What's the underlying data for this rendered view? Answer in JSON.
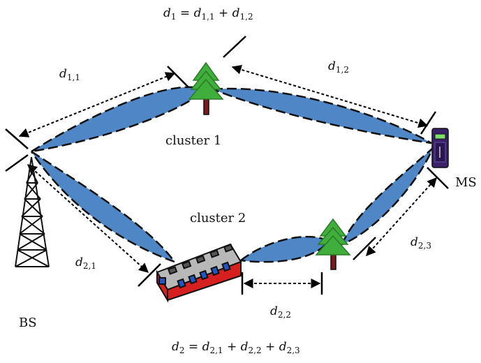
{
  "equations": {
    "top": {
      "lhs": "d",
      "lhs_sub": "1",
      "rhs": [
        {
          "v": "d",
          "s": "1,1"
        },
        {
          "v": "d",
          "s": "1,2"
        }
      ]
    },
    "bottom": {
      "lhs": "d",
      "lhs_sub": "2",
      "rhs": [
        {
          "v": "d",
          "s": "2,1"
        },
        {
          "v": "d",
          "s": "2,2"
        },
        {
          "v": "d",
          "s": "2,3"
        }
      ]
    }
  },
  "labels": {
    "cluster1": "cluster 1",
    "cluster2": "cluster 2",
    "bs": "BS",
    "ms": "MS"
  },
  "distances": {
    "d11": {
      "v": "d",
      "s": "1,1"
    },
    "d12": {
      "v": "d",
      "s": "1,2"
    },
    "d21": {
      "v": "d",
      "s": "2,1"
    },
    "d22": {
      "v": "d",
      "s": "2,2"
    },
    "d23": {
      "v": "d",
      "s": "2,3"
    }
  },
  "colors": {
    "beam": "#4f86c6",
    "tree": "#3fae3a",
    "trunk": "#7a1a1a",
    "bus_body": "#d62020",
    "bus_roof": "#b8b8b8",
    "phone": "#3a1f6b",
    "phone_screen": "#7ee06a"
  },
  "icons": [
    "tower-icon",
    "tree-icon",
    "bus-icon",
    "phone-icon"
  ]
}
